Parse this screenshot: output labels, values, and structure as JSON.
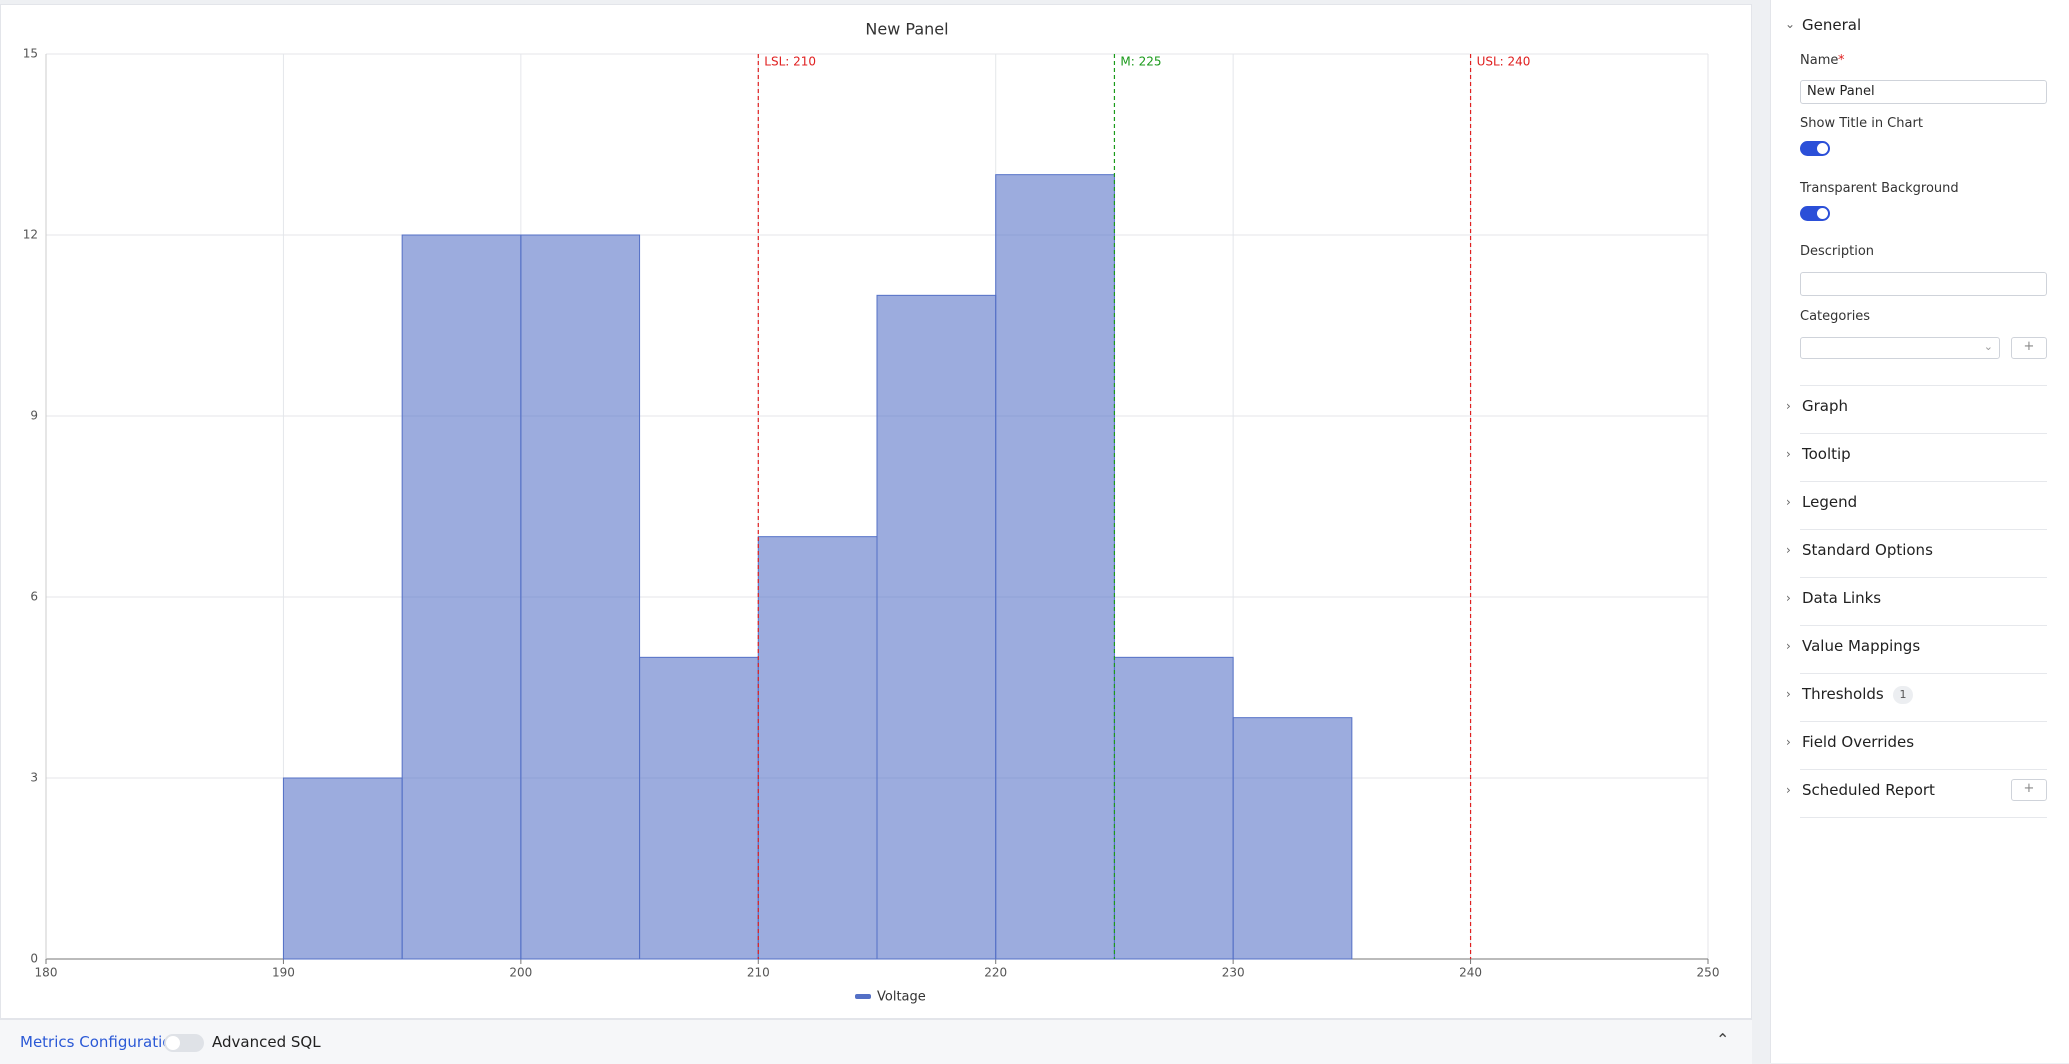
{
  "chart_data": {
    "type": "histogram",
    "title": "New Panel",
    "bins": [
      190,
      195,
      200,
      205,
      210,
      215,
      220,
      225,
      230,
      235
    ],
    "series": [
      {
        "name": "Voltage",
        "color": "#5470c6",
        "values": [
          3,
          12,
          12,
          5,
          7,
          11,
          13,
          5,
          4
        ]
      }
    ],
    "xlim": [
      180,
      250
    ],
    "xticks": [
      180,
      190,
      200,
      210,
      220,
      230,
      240,
      250
    ],
    "ylim": [
      0,
      15
    ],
    "yticks": [
      0,
      3,
      6,
      9,
      12,
      15
    ],
    "grid": true,
    "legend": "bottom",
    "annotations": [
      {
        "label": "LSL: 210",
        "value": 210,
        "color": "#e02020"
      },
      {
        "label": "M: 225",
        "value": 225,
        "color": "#1a9a1a"
      },
      {
        "label": "USL: 240",
        "value": 240,
        "color": "#e02020"
      }
    ]
  },
  "sidebar": {
    "general": {
      "title": "General",
      "name": {
        "label": "Name",
        "required": "*",
        "value": "New Panel"
      },
      "show_title": {
        "label": "Show Title in Chart",
        "on": true
      },
      "transparent": {
        "label": "Transparent Background",
        "on": true
      },
      "description": {
        "label": "Description"
      },
      "categories": {
        "label": "Categories"
      }
    },
    "sections": [
      {
        "title": "Graph"
      },
      {
        "title": "Tooltip"
      },
      {
        "title": "Legend"
      },
      {
        "title": "Standard Options"
      },
      {
        "title": "Data Links"
      },
      {
        "title": "Value Mappings"
      },
      {
        "title": "Thresholds",
        "badge": 1
      },
      {
        "title": "Field Overrides"
      },
      {
        "title": "Scheduled Report"
      }
    ]
  },
  "footer": {
    "metrics": "Metrics Configuration",
    "advanced": "Advanced SQL"
  }
}
